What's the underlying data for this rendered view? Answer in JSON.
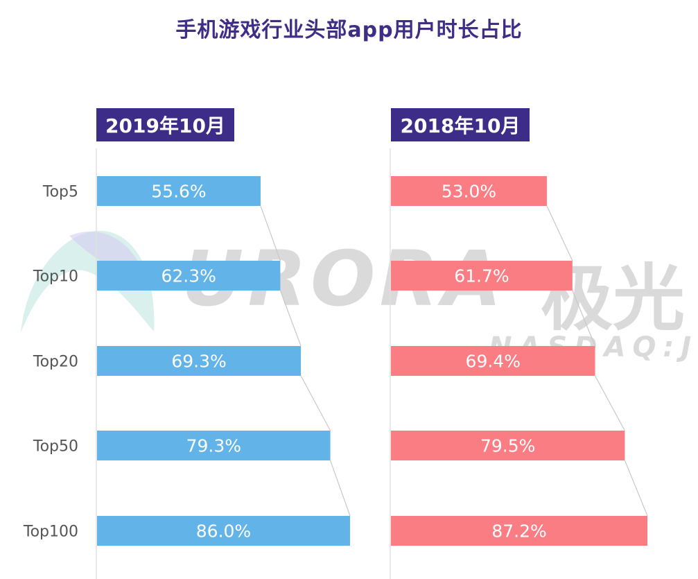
{
  "title": "手机游戏行业头部app用户时长占比",
  "watermark": {
    "brand": "URORA",
    "brand_cn": "极光",
    "ticker": "NASDAQ:JG"
  },
  "chart_data": {
    "type": "bar",
    "orientation": "horizontal",
    "categories": [
      "Top5",
      "Top10",
      "Top20",
      "Top50",
      "Top100"
    ],
    "panels": [
      {
        "label": "2019年10月",
        "color": "#62b4e8",
        "values": [
          55.6,
          62.3,
          69.3,
          79.3,
          86.0
        ],
        "value_labels": [
          "55.6%",
          "62.3%",
          "69.3%",
          "79.3%",
          "86.0%"
        ]
      },
      {
        "label": "2018年10月",
        "color": "#fa7d84",
        "values": [
          53.0,
          61.7,
          69.4,
          79.5,
          87.2
        ],
        "value_labels": [
          "53.0%",
          "61.7%",
          "69.4%",
          "79.5%",
          "87.2%"
        ]
      }
    ],
    "unit": "%",
    "xlim": [
      0,
      100
    ],
    "grid": false,
    "legend": "none"
  },
  "colors": {
    "title": "#3f2d86",
    "panel_label_bg": "#3d2c88",
    "connector": "#c8c8c8",
    "axis": "#e0e0e0"
  }
}
